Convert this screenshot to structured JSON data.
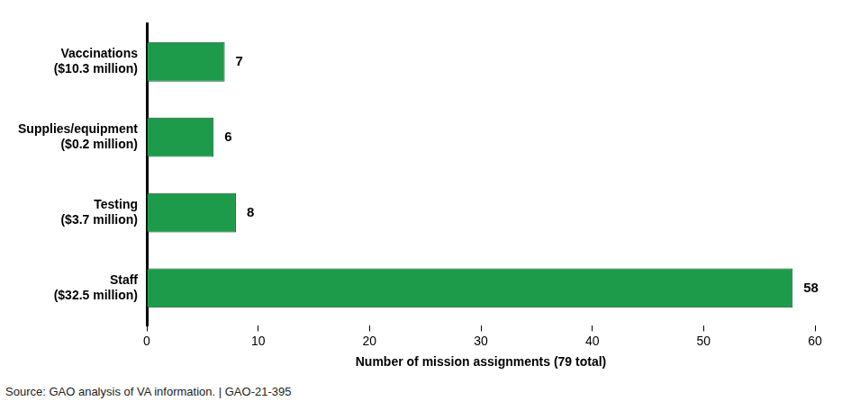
{
  "chart_data": {
    "type": "bar",
    "orientation": "horizontal",
    "categories": [
      [
        "Vaccinations",
        "($10.3 million)"
      ],
      [
        "Supplies/equipment",
        "($0.2 million)"
      ],
      [
        "Testing",
        "($3.7 million)"
      ],
      [
        "Staff",
        "($32.5 million)"
      ]
    ],
    "values": [
      7,
      6,
      8,
      58
    ],
    "color": "#1e9a4b",
    "x_label": "Number of mission assignments (79 total)",
    "xlim": [
      0,
      60
    ],
    "xticks": [
      0,
      10,
      20,
      30,
      40,
      50,
      60
    ],
    "grid": false,
    "data_labels": true,
    "annotations": [
      "Source: GAO analysis of VA information.  |  GAO-21-395"
    ]
  }
}
